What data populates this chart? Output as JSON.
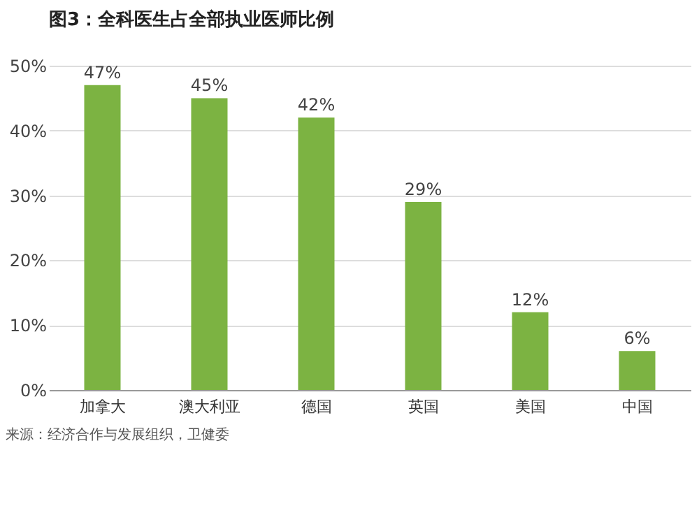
{
  "chart_data": {
    "type": "bar",
    "title": "图3：全科医生占全部执业医师比例",
    "categories": [
      "加拿大",
      "澳大利亚",
      "德国",
      "英国",
      "美国",
      "中国"
    ],
    "values": [
      47,
      45,
      42,
      29,
      12,
      6
    ],
    "value_labels": [
      "47%",
      "45%",
      "42%",
      "29%",
      "12%",
      "6%"
    ],
    "color": "#7cb342",
    "ylim": [
      0,
      50
    ],
    "yticks": [
      {
        "value": 0,
        "label": "0%"
      },
      {
        "value": 10,
        "label": "10%"
      },
      {
        "value": 20,
        "label": "20%"
      },
      {
        "value": 30,
        "label": "30%"
      },
      {
        "value": 40,
        "label": "40%"
      },
      {
        "value": 50,
        "label": "50%"
      }
    ],
    "grid": "y",
    "annotations": [
      "来源：经济合作与发展组织，卫健委"
    ]
  }
}
